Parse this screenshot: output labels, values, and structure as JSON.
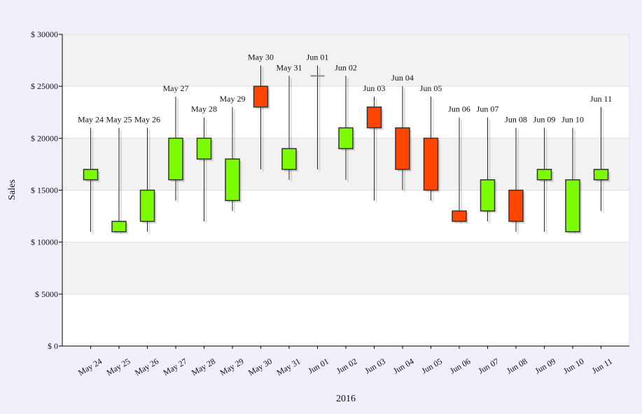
{
  "chart_data": {
    "type": "candlestick",
    "title": "",
    "xlabel": "2016",
    "ylabel": "Sales",
    "ylim": [
      0,
      30000
    ],
    "yticks": [
      0,
      5000,
      10000,
      15000,
      20000,
      25000,
      30000
    ],
    "ytick_labels": [
      "$ 0",
      "$ 5000",
      "$ 10000",
      "$ 15000",
      "$ 20000",
      "$ 25000",
      "$ 30000"
    ],
    "grid": true,
    "colors": {
      "up": "#7cfc00",
      "down": "#ff4500",
      "doji": "#888888"
    },
    "categories": [
      "May 24",
      "May 25",
      "May 26",
      "May 27",
      "May 28",
      "May 29",
      "May 30",
      "May 31",
      "Jun 01",
      "Jun 02",
      "Jun 03",
      "Jun 04",
      "Jun 05",
      "Jun 06",
      "Jun 07",
      "Jun 08",
      "Jun 09",
      "Jun 10",
      "Jun 11"
    ],
    "open": [
      16000,
      11000,
      12000,
      16000,
      18000,
      14000,
      25000,
      17000,
      26000,
      19000,
      23000,
      21000,
      20000,
      13000,
      13000,
      15000,
      16000,
      11000,
      16000
    ],
    "close": [
      17000,
      12000,
      15000,
      20000,
      20000,
      18000,
      23000,
      19000,
      26000,
      21000,
      21000,
      17000,
      15000,
      12000,
      16000,
      12000,
      17000,
      16000,
      17000
    ],
    "high": [
      21000,
      21000,
      21000,
      24000,
      22000,
      23000,
      27000,
      26000,
      27000,
      26000,
      24000,
      25000,
      24000,
      22000,
      22000,
      21000,
      21000,
      21000,
      23000
    ],
    "low": [
      11000,
      11000,
      11000,
      14000,
      12000,
      13000,
      17000,
      16000,
      17000,
      16000,
      14000,
      15000,
      14000,
      12000,
      12000,
      11000,
      11000,
      11000,
      13000
    ]
  }
}
